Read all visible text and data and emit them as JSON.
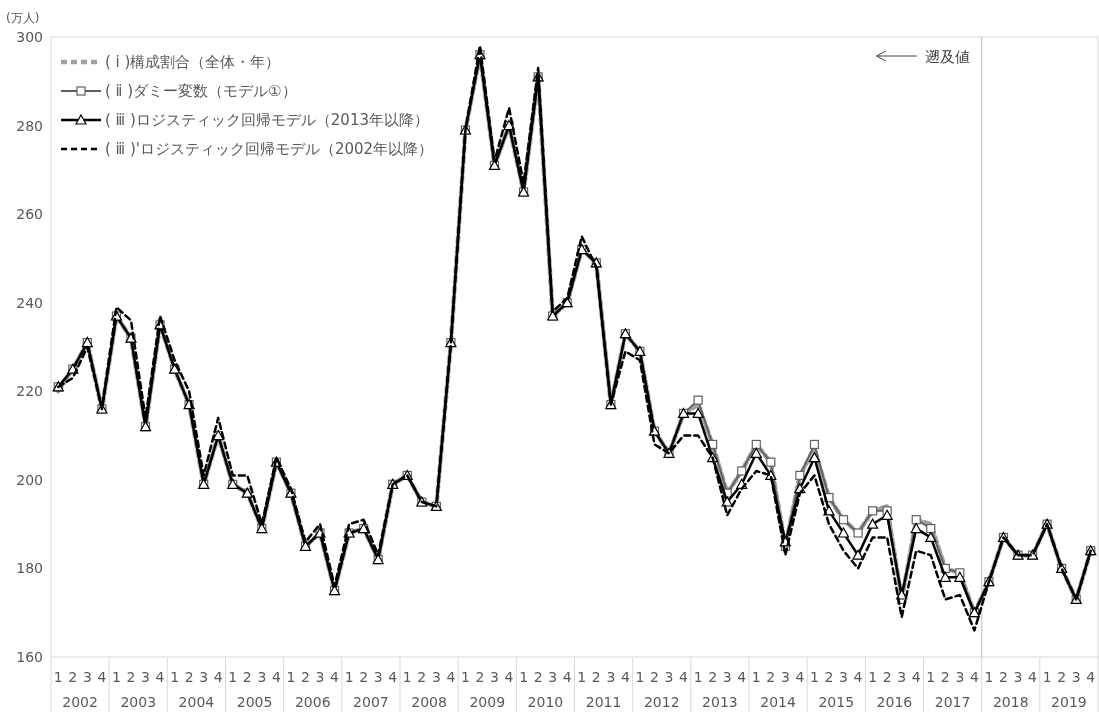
{
  "chart_data": {
    "type": "line",
    "ylabel": "(万人)",
    "categories": [
      "1",
      "2",
      "3",
      "4",
      "1",
      "2",
      "3",
      "4",
      "1",
      "2",
      "3",
      "4",
      "1",
      "2",
      "3",
      "4",
      "1",
      "2",
      "3",
      "4",
      "1",
      "2",
      "3",
      "4",
      "1",
      "2",
      "3",
      "4",
      "1",
      "2",
      "3",
      "4",
      "1",
      "2",
      "3",
      "4",
      "1",
      "2",
      "3",
      "4",
      "1",
      "2",
      "3",
      "4",
      "1",
      "2",
      "3",
      "4",
      "1",
      "2",
      "3",
      "4",
      "1",
      "2",
      "3",
      "4",
      "1",
      "2",
      "3",
      "4",
      "1",
      "2",
      "3",
      "4",
      "1",
      "2",
      "3",
      "4",
      "1",
      "2",
      "3",
      "4"
    ],
    "annotations": [
      "2002",
      "2003",
      "2004",
      "2005",
      "2006",
      "2007",
      "2008",
      "2009",
      "2010",
      "2011",
      "2012",
      "2013",
      "2014",
      "2015",
      "2016",
      "2017",
      "2018",
      "2019",
      "遡及値"
    ],
    "ylim": [
      160,
      300
    ],
    "yticks": [
      160,
      180,
      200,
      220,
      240,
      260,
      280,
      300
    ],
    "legend": "top left",
    "series": [
      {
        "name": "( ⅰ )構成割合（全体・年）",
        "color": "#a0a0a0",
        "marker": "none",
        "line_style": "dashed",
        "values": [
          220,
          225,
          231,
          216,
          237,
          232,
          212,
          235,
          225,
          217,
          199,
          210,
          199,
          197,
          189,
          204,
          197,
          185,
          188,
          175,
          188,
          189,
          182,
          199,
          201,
          195,
          194,
          231,
          279,
          296,
          271,
          280,
          265,
          291,
          237,
          240,
          252,
          249,
          217,
          233,
          229,
          211,
          206,
          215,
          217,
          208,
          197,
          202,
          208,
          204,
          185,
          201,
          207,
          196,
          191,
          188,
          193,
          194,
          173,
          191,
          190,
          180,
          179,
          170,
          177,
          187,
          183,
          183,
          190,
          180,
          173,
          184
        ]
      },
      {
        "name": "( ⅱ )ダミー変数（モデル①）",
        "color": "#606060",
        "marker": "square",
        "line_style": "solid",
        "values": [
          221,
          225,
          231,
          216,
          237,
          232,
          212,
          235,
          225,
          217,
          199,
          210,
          199,
          197,
          189,
          204,
          197,
          185,
          188,
          175,
          188,
          189,
          182,
          199,
          201,
          195,
          194,
          231,
          279,
          296,
          271,
          280,
          265,
          291,
          237,
          240,
          252,
          249,
          217,
          233,
          229,
          211,
          206,
          215,
          218,
          208,
          197,
          202,
          208,
          204,
          185,
          201,
          208,
          196,
          191,
          188,
          193,
          193,
          173,
          191,
          189,
          180,
          179,
          170,
          177,
          187,
          183,
          183,
          190,
          180,
          173,
          184
        ]
      },
      {
        "name": "( ⅲ )ロジスティック回帰モデル（2013年以降）",
        "color": "#000000",
        "marker": "triangle",
        "line_style": "solid",
        "values": [
          221,
          225,
          231,
          216,
          237,
          232,
          212,
          235,
          225,
          217,
          199,
          210,
          199,
          197,
          189,
          204,
          197,
          185,
          188,
          175,
          188,
          189,
          182,
          199,
          201,
          195,
          194,
          231,
          279,
          296,
          271,
          280,
          265,
          291,
          237,
          240,
          252,
          249,
          217,
          233,
          229,
          211,
          206,
          215,
          215,
          205,
          195,
          199,
          206,
          201,
          186,
          198,
          205,
          193,
          188,
          183,
          190,
          192,
          174,
          189,
          187,
          178,
          178,
          170,
          177,
          187,
          183,
          183,
          190,
          180,
          173,
          184
        ]
      },
      {
        "name": "( ⅲ )'ロジスティック回帰モデル（2002年以降）",
        "color": "#000000",
        "marker": "none",
        "line_style": "dashed",
        "values": [
          221,
          223,
          230,
          216,
          239,
          236,
          214,
          237,
          227,
          220,
          201,
          214,
          201,
          201,
          190,
          205,
          198,
          186,
          190,
          176,
          190,
          191,
          183,
          199,
          201,
          195,
          194,
          231,
          279,
          298,
          272,
          284,
          267,
          293,
          238,
          241,
          255,
          248,
          217,
          229,
          227,
          208,
          206,
          210,
          210,
          205,
          192,
          198,
          202,
          201,
          183,
          197,
          201,
          190,
          184,
          180,
          187,
          187,
          169,
          184,
          183,
          173,
          174,
          166,
          177,
          187,
          183,
          183,
          190,
          180,
          173,
          184
        ]
      }
    ]
  }
}
